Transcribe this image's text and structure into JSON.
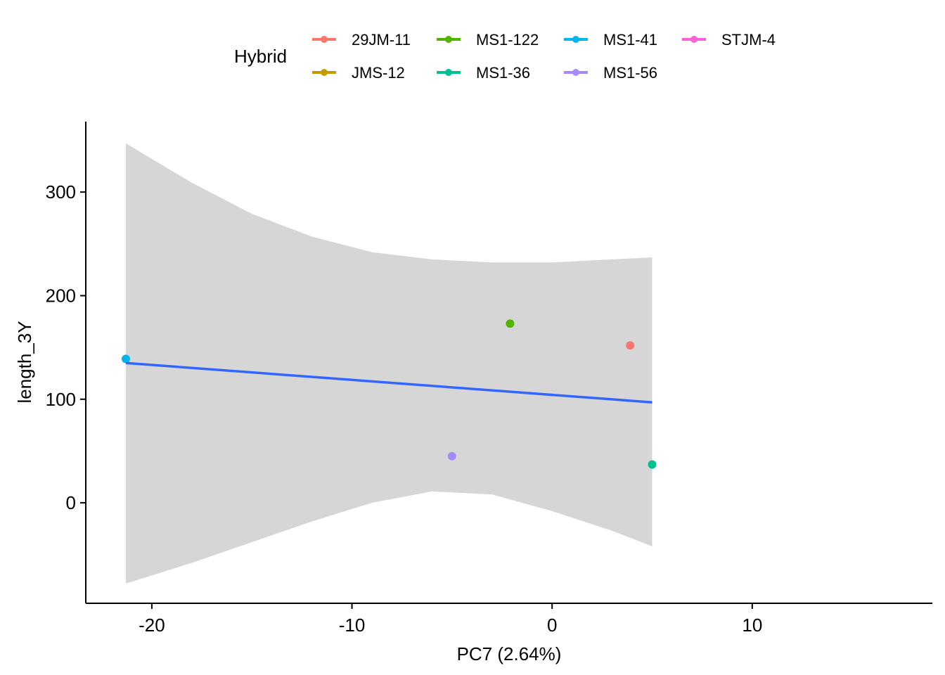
{
  "legend": {
    "title": "Hybrid",
    "items": [
      {
        "label": "29JM-11",
        "color": "#F8766D"
      },
      {
        "label": "JMS-12",
        "color": "#C49A00"
      },
      {
        "label": "MS1-122",
        "color": "#53B400"
      },
      {
        "label": "MS1-36",
        "color": "#00C094"
      },
      {
        "label": "MS1-41",
        "color": "#00B6EB"
      },
      {
        "label": "MS1-56",
        "color": "#A58AFF"
      },
      {
        "label": "STJM-4",
        "color": "#FB61D7"
      }
    ]
  },
  "chart_data": {
    "type": "scatter",
    "title": "",
    "xlabel": "PC7 (2.64%)",
    "ylabel": "length_3Y",
    "xlim": [
      -23.3,
      19
    ],
    "ylim": [
      -97,
      368
    ],
    "x_ticks": [
      -20,
      -10,
      0,
      10
    ],
    "y_ticks": [
      0,
      100,
      200,
      300
    ],
    "grid": false,
    "legend_position": "top",
    "series": [
      {
        "name": "29JM-11",
        "color": "#F8766D",
        "points": [
          {
            "x": 3.9,
            "y": 152
          }
        ]
      },
      {
        "name": "MS1-122",
        "color": "#53B400",
        "points": [
          {
            "x": -2.1,
            "y": 173
          }
        ]
      },
      {
        "name": "MS1-36",
        "color": "#00C094",
        "points": [
          {
            "x": 5.0,
            "y": 37
          }
        ]
      },
      {
        "name": "MS1-41",
        "color": "#00B6EB",
        "points": [
          {
            "x": -21.3,
            "y": 139
          }
        ]
      },
      {
        "name": "MS1-56",
        "color": "#A58AFF",
        "points": [
          {
            "x": -5.0,
            "y": 45
          }
        ]
      }
    ],
    "fit_line": {
      "color": "#3366FF",
      "x": [
        -21.3,
        5.0
      ],
      "y": [
        135,
        97
      ]
    },
    "confidence_band": {
      "color": "#D6D6D6",
      "x": [
        -21.3,
        -18,
        -15,
        -12,
        -9,
        -6,
        -3,
        0,
        3,
        5.0
      ],
      "upper": [
        347,
        309,
        279,
        257,
        242,
        235,
        232,
        232,
        235,
        237
      ],
      "lower": [
        -78,
        -58,
        -38,
        -18,
        0,
        11,
        8,
        -8,
        -27,
        -42
      ]
    }
  }
}
